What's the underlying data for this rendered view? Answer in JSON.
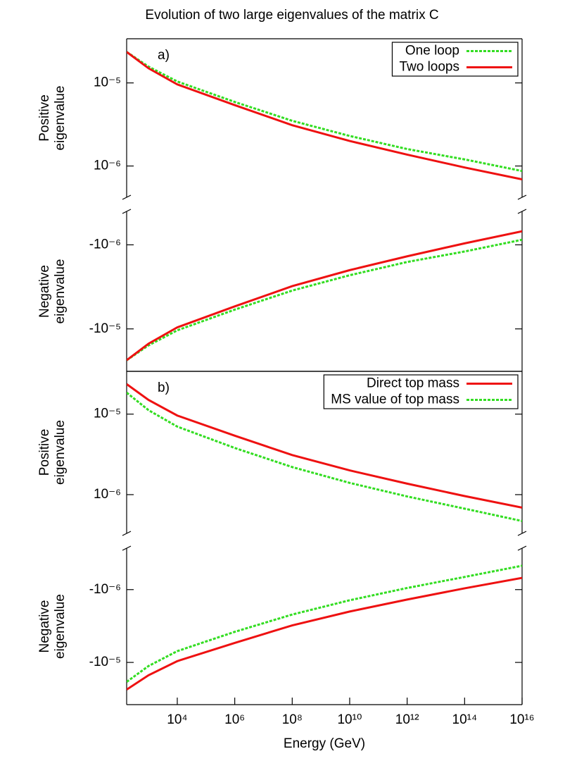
{
  "title": "Evolution of two large eigenvalues of the matrix C",
  "chart_data": [
    {
      "type": "line",
      "label": "a)",
      "ylabel": [
        "Positive",
        "eigenvalue"
      ],
      "xscale": "log",
      "yscale": "log",
      "legend": "upper right",
      "x": [
        173,
        1000,
        10000,
        1000000,
        100000000,
        10000000000,
        1000000000000,
        100000000000000,
        10000000000000000
      ],
      "xlim": [
        173,
        10000000000000000
      ],
      "ylim": [
        4.2e-07,
        3.4e-05
      ],
      "yticks": [
        {
          "value": 1e-05,
          "label": "10⁻⁵"
        },
        {
          "value": 1e-06,
          "label": "10⁻⁶"
        }
      ],
      "series": [
        {
          "name": "One loop",
          "color": "#33dd22",
          "dashed": true,
          "values": [
            2.36e-05,
            1.57e-05,
            1.04e-05,
            5.9e-06,
            3.5e-06,
            2.3e-06,
            1.6e-06,
            1.2e-06,
            8.7e-07
          ]
        },
        {
          "name": "Two loops",
          "color": "#ee1111",
          "dashed": false,
          "values": [
            2.36e-05,
            1.5e-05,
            9.6e-06,
            5.4e-06,
            3.1e-06,
            2e-06,
            1.37e-06,
            9.6e-07,
            6.9e-07
          ]
        }
      ]
    },
    {
      "type": "line",
      "ylabel": [
        "Negative",
        "eigenvalue"
      ],
      "xscale": "log",
      "yscale": "log",
      "x": [
        173,
        1000,
        10000,
        1000000,
        100000000,
        10000000000,
        1000000000000,
        100000000000000,
        10000000000000000
      ],
      "xlim": [
        173,
        10000000000000000
      ],
      "ylim": [
        -3.2e-05,
        -4e-07
      ],
      "yticks": [
        {
          "value": -1e-06,
          "label": "-10⁻⁶"
        },
        {
          "value": -1e-05,
          "label": "-10⁻⁵"
        }
      ],
      "series": [
        {
          "color": "#33dd22",
          "dashed": true,
          "values": [
            -2.36e-05,
            -1.57e-05,
            -1.04e-05,
            -5.9e-06,
            -3.5e-06,
            -2.3e-06,
            -1.6e-06,
            -1.2e-06,
            -8.7e-07
          ]
        },
        {
          "color": "#ee1111",
          "dashed": false,
          "values": [
            -2.36e-05,
            -1.5e-05,
            -9.6e-06,
            -5.4e-06,
            -3.1e-06,
            -2e-06,
            -1.37e-06,
            -9.6e-07,
            -6.9e-07
          ]
        }
      ]
    },
    {
      "type": "line",
      "label": "b)",
      "ylabel": [
        "Positive",
        "eigenvalue"
      ],
      "xscale": "log",
      "yscale": "log",
      "legend": "upper right",
      "x": [
        173,
        1000,
        10000,
        1000000,
        100000000,
        10000000000,
        1000000000000,
        100000000000000,
        10000000000000000
      ],
      "xlim": [
        173,
        10000000000000000
      ],
      "ylim": [
        3.3e-07,
        3.4e-05
      ],
      "yticks": [
        {
          "value": 1e-05,
          "label": "10⁻⁵"
        },
        {
          "value": 1e-06,
          "label": "10⁻⁶"
        }
      ],
      "series": [
        {
          "name": "Direct top mass",
          "color": "#ee1111",
          "dashed": false,
          "values": [
            2.36e-05,
            1.5e-05,
            9.6e-06,
            5.4e-06,
            3.1e-06,
            2e-06,
            1.37e-06,
            9.6e-07,
            6.9e-07
          ]
        },
        {
          "name": "MS value of top mass",
          "color": "#33dd22",
          "dashed": true,
          "values": [
            1.85e-05,
            1.12e-05,
            7e-06,
            3.8e-06,
            2.2e-06,
            1.4e-06,
            9.5e-07,
            6.7e-07,
            4.7e-07
          ]
        }
      ]
    },
    {
      "type": "line",
      "ylabel": [
        "Negative",
        "eigenvalue"
      ],
      "xlabel": "Energy (GeV)",
      "xscale": "log",
      "yscale": "log",
      "x": [
        173,
        1000,
        10000,
        1000000,
        100000000,
        10000000000,
        1000000000000,
        100000000000000,
        10000000000000000
      ],
      "xlim": [
        173,
        10000000000000000
      ],
      "xticks": [
        {
          "value": 10000,
          "label": "10⁴"
        },
        {
          "value": 1000000,
          "label": "10⁶"
        },
        {
          "value": 100000000,
          "label": "10⁸"
        },
        {
          "value": 10000000000,
          "label": "10¹⁰"
        },
        {
          "value": 1000000000000,
          "label": "10¹²"
        },
        {
          "value": 100000000000000,
          "label": "10¹⁴"
        },
        {
          "value": 10000000000000000,
          "label": "10¹⁶"
        }
      ],
      "ylim": [
        -3.8e-05,
        -2.7e-07
      ],
      "yticks": [
        {
          "value": -1e-06,
          "label": "-10⁻⁶"
        },
        {
          "value": -1e-05,
          "label": "-10⁻⁵"
        }
      ],
      "series": [
        {
          "color": "#ee1111",
          "dashed": false,
          "values": [
            -2.36e-05,
            -1.5e-05,
            -9.6e-06,
            -5.4e-06,
            -3.1e-06,
            -2e-06,
            -1.37e-06,
            -9.6e-07,
            -6.9e-07
          ]
        },
        {
          "color": "#33dd22",
          "dashed": true,
          "values": [
            -1.85e-05,
            -1.12e-05,
            -7e-06,
            -3.8e-06,
            -2.2e-06,
            -1.4e-06,
            -9.5e-07,
            -6.7e-07,
            -4.7e-07
          ]
        }
      ]
    }
  ]
}
